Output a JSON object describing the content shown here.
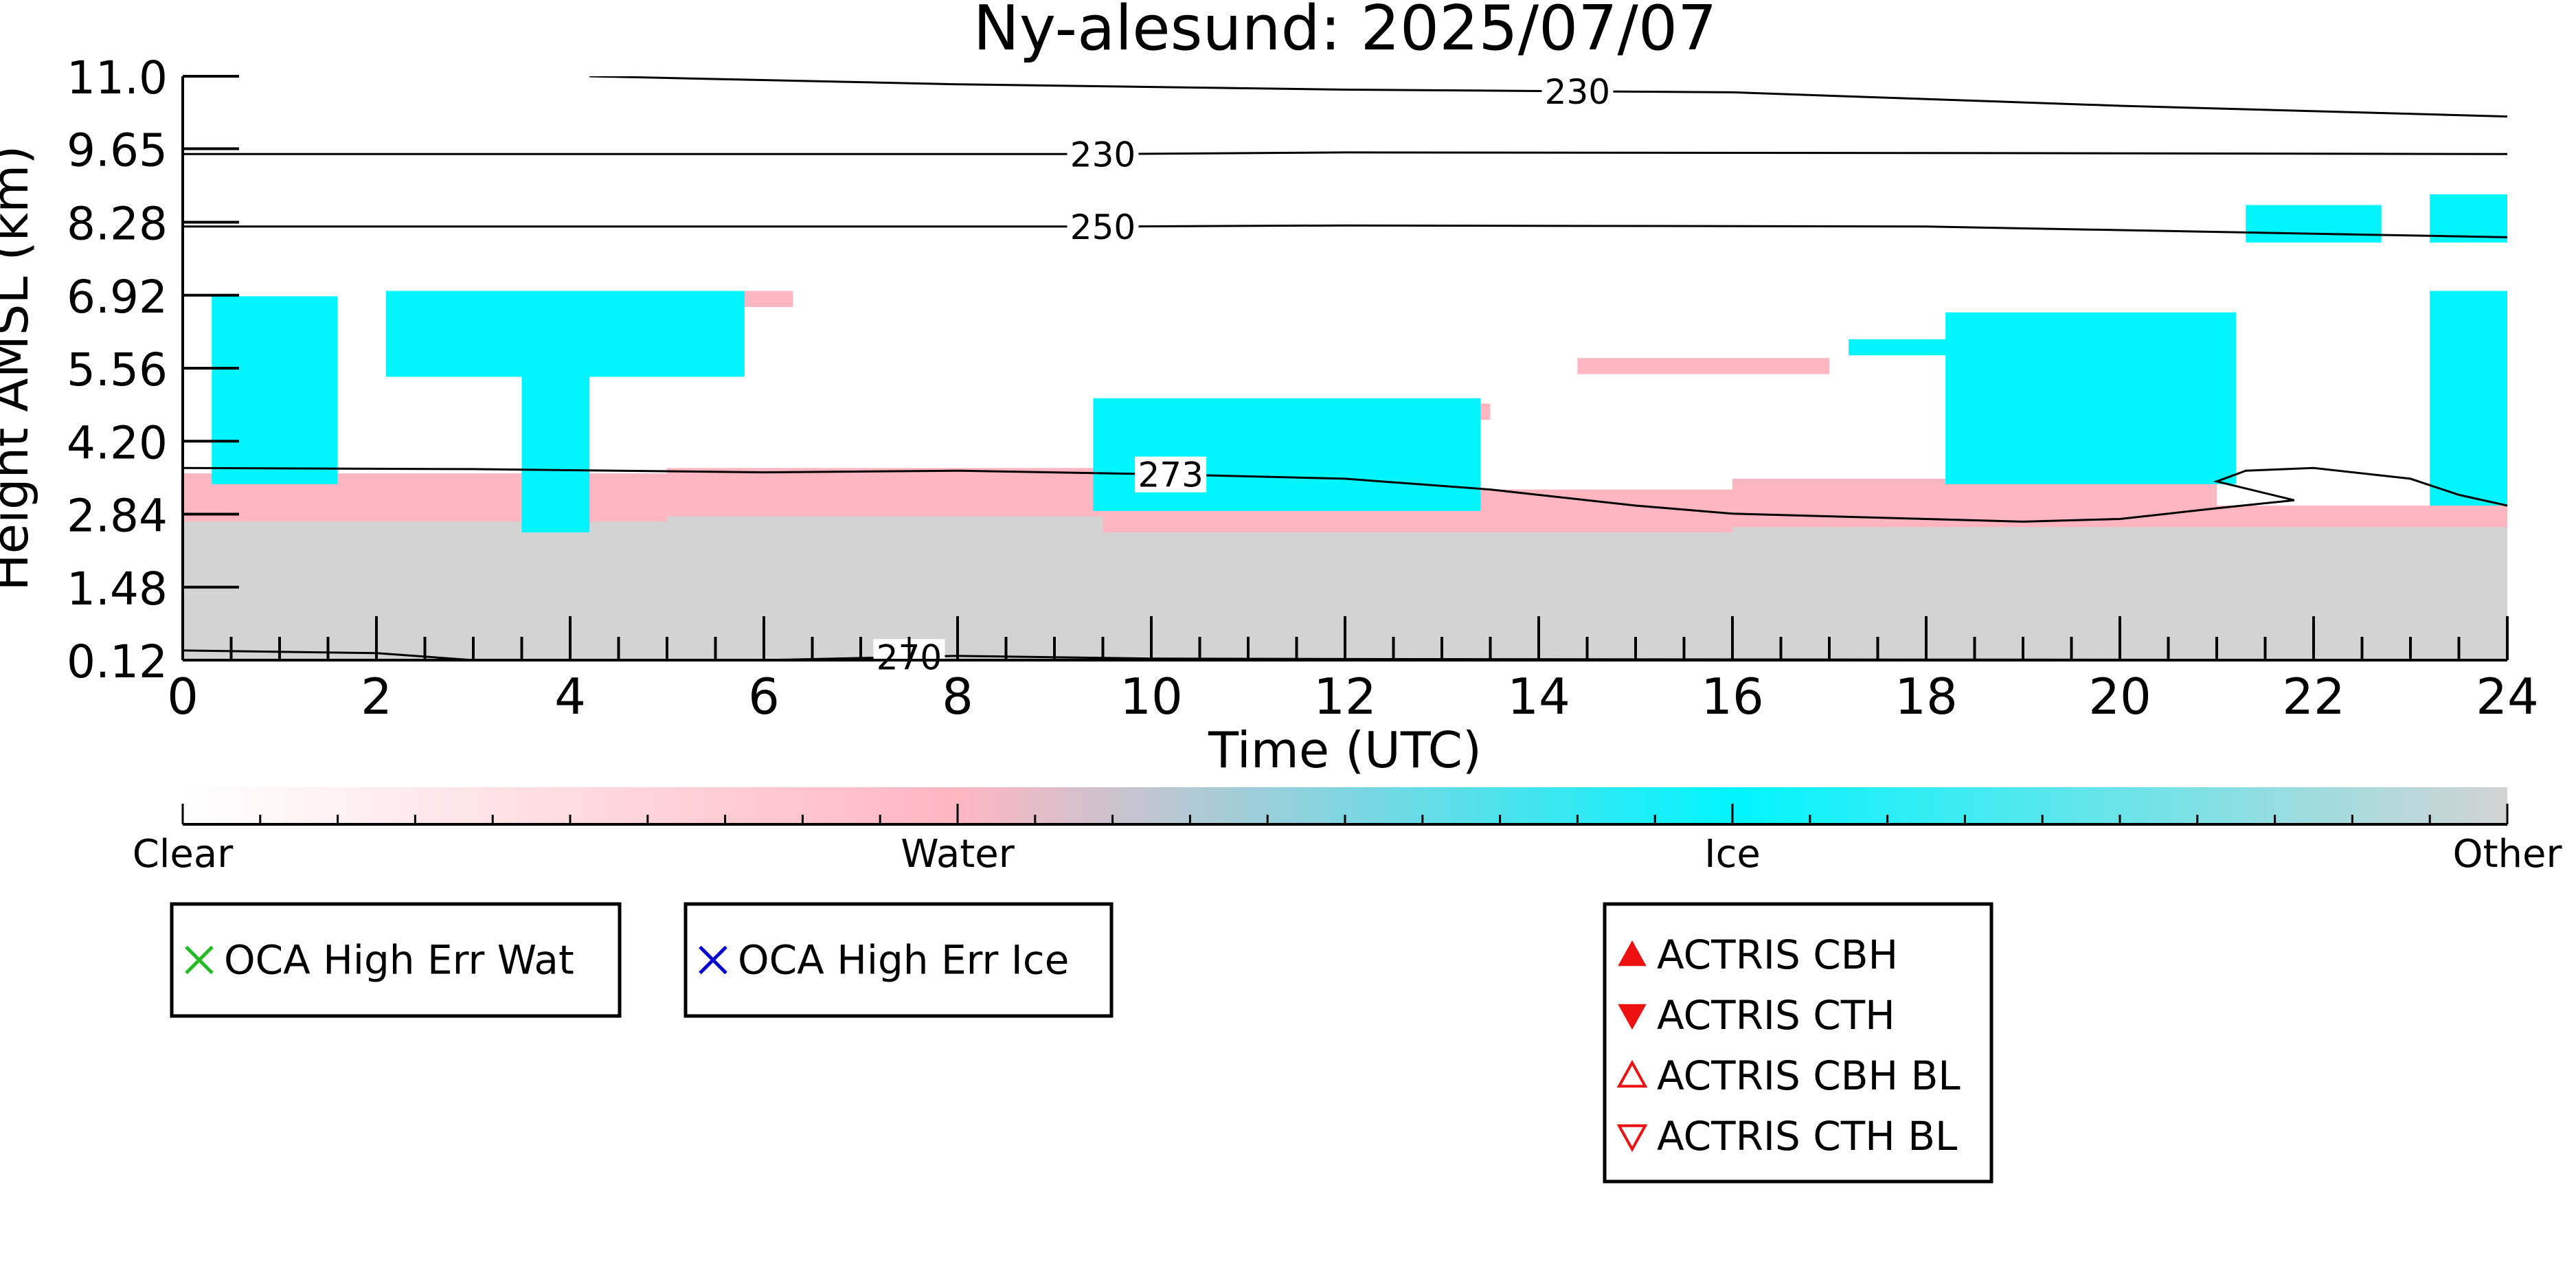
{
  "chart_data": {
    "type": "heatmap",
    "title": "Ny-alesund: 2025/07/07",
    "xlabel": "Time (UTC)",
    "ylabel": "Height AMSL (km)",
    "xlim": [
      0,
      24
    ],
    "ylim": [
      0.12,
      11.0
    ],
    "x_ticks": [
      0,
      2,
      4,
      6,
      8,
      10,
      12,
      14,
      16,
      18,
      20,
      22,
      24
    ],
    "x_tick_labels": [
      "0",
      "2",
      "4",
      "6",
      "8",
      "10",
      "12",
      "14",
      "16",
      "18",
      "20",
      "22",
      "24"
    ],
    "y_ticks": [
      0.12,
      1.48,
      2.84,
      4.2,
      5.56,
      6.92,
      8.28,
      9.65,
      11.0
    ],
    "y_tick_labels": [
      "0.12",
      "1.48",
      "2.84",
      "4.20",
      "5.56",
      "6.92",
      "8.28",
      "9.65",
      "11.0"
    ],
    "classes": [
      {
        "name": "Clear",
        "color": "#ffffff"
      },
      {
        "name": "Water",
        "color": "#ffb6c1"
      },
      {
        "name": "Ice",
        "color": "#00f5ff"
      },
      {
        "name": "Other",
        "color": "#d3d3d3"
      }
    ],
    "class_regions": [
      {
        "class": "Other",
        "t0": 0,
        "t1": 24,
        "h0": 0.12,
        "h1": 2.9
      },
      {
        "class": "Water",
        "t0": 0,
        "t1": 5,
        "h0": 2.7,
        "h1": 3.6
      },
      {
        "class": "Water",
        "t0": 5,
        "t1": 10,
        "h0": 2.8,
        "h1": 3.7
      },
      {
        "class": "Water",
        "t0": 9.5,
        "t1": 16,
        "h0": 2.5,
        "h1": 3.3
      },
      {
        "class": "Water",
        "t0": 16,
        "t1": 21,
        "h0": 2.6,
        "h1": 3.5
      },
      {
        "class": "Water",
        "t0": 21,
        "t1": 24,
        "h0": 2.6,
        "h1": 3.0
      },
      {
        "class": "Water",
        "t0": 3.4,
        "t1": 6.3,
        "h0": 6.7,
        "h1": 7.0
      },
      {
        "class": "Water",
        "t0": 9.5,
        "t1": 13.5,
        "h0": 4.6,
        "h1": 4.9
      },
      {
        "class": "Water",
        "t0": 14.4,
        "t1": 17,
        "h0": 5.45,
        "h1": 5.75
      },
      {
        "class": "Ice",
        "t0": 0.3,
        "t1": 1.6,
        "h0": 3.4,
        "h1": 6.9
      },
      {
        "class": "Ice",
        "t0": 2.1,
        "t1": 5.8,
        "h0": 5.4,
        "h1": 7.0
      },
      {
        "class": "Ice",
        "t0": 3.5,
        "t1": 4.2,
        "h0": 2.5,
        "h1": 5.5
      },
      {
        "class": "Ice",
        "t0": 9.4,
        "t1": 13.4,
        "h0": 2.9,
        "h1": 5.0
      },
      {
        "class": "Ice",
        "t0": 17.2,
        "t1": 19.5,
        "h0": 5.8,
        "h1": 6.1
      },
      {
        "class": "Ice",
        "t0": 18.2,
        "t1": 21.2,
        "h0": 3.4,
        "h1": 6.6
      },
      {
        "class": "Ice",
        "t0": 21.3,
        "t1": 22.7,
        "h0": 7.9,
        "h1": 8.6
      },
      {
        "class": "Ice",
        "t0": 23.2,
        "t1": 24,
        "h0": 7.9,
        "h1": 8.8
      },
      {
        "class": "Ice",
        "t0": 23.2,
        "t1": 24,
        "h0": 3.0,
        "h1": 7.0
      }
    ],
    "contours": [
      {
        "label": "230",
        "label_x": 14.4,
        "points": [
          [
            4.2,
            11.0
          ],
          [
            8,
            10.85
          ],
          [
            12,
            10.75
          ],
          [
            14.4,
            10.72
          ],
          [
            16,
            10.7
          ],
          [
            20,
            10.45
          ],
          [
            24,
            10.25
          ]
        ]
      },
      {
        "label": "230",
        "label_x": 9.5,
        "points": [
          [
            0,
            9.55
          ],
          [
            6,
            9.55
          ],
          [
            9.5,
            9.55
          ],
          [
            12,
            9.58
          ],
          [
            18,
            9.57
          ],
          [
            24,
            9.55
          ]
        ]
      },
      {
        "label": "250",
        "label_x": 9.5,
        "points": [
          [
            0,
            8.2
          ],
          [
            6,
            8.2
          ],
          [
            9.5,
            8.2
          ],
          [
            12,
            8.22
          ],
          [
            18,
            8.2
          ],
          [
            24,
            8.0
          ]
        ]
      },
      {
        "label": "273",
        "label_x": 10.2,
        "points": [
          [
            0,
            3.7
          ],
          [
            3,
            3.68
          ],
          [
            6,
            3.62
          ],
          [
            8,
            3.65
          ],
          [
            10.2,
            3.58
          ],
          [
            12,
            3.5
          ],
          [
            13.5,
            3.3
          ],
          [
            15,
            3.0
          ],
          [
            16,
            2.85
          ],
          [
            17,
            2.8
          ],
          [
            18,
            2.75
          ],
          [
            19,
            2.7
          ],
          [
            20,
            2.75
          ],
          [
            20.5,
            2.85
          ],
          [
            21,
            2.95
          ],
          [
            21.8,
            3.1
          ],
          [
            21,
            3.45
          ],
          [
            21.3,
            3.65
          ],
          [
            22,
            3.7
          ],
          [
            23,
            3.5
          ],
          [
            23.5,
            3.2
          ],
          [
            24,
            3.0
          ]
        ]
      },
      {
        "label": "270",
        "label_x": 7.5,
        "points": [
          [
            0,
            0.3
          ],
          [
            2,
            0.25
          ],
          [
            3,
            0.12
          ],
          [
            6,
            0.12
          ],
          [
            8,
            0.2
          ],
          [
            10,
            0.15
          ],
          [
            12,
            0.14
          ],
          [
            24,
            0.12
          ]
        ]
      }
    ],
    "legends": [
      {
        "items": [
          {
            "label": "OCA High Err Wat",
            "marker": "x",
            "color": "#22bb22"
          }
        ]
      },
      {
        "items": [
          {
            "label": "OCA High Err Ice",
            "marker": "x",
            "color": "#0000cc"
          }
        ]
      },
      {
        "items": [
          {
            "label": "ACTRIS CBH",
            "marker": "triangle-up-filled",
            "color": "#ee1111"
          },
          {
            "label": "ACTRIS CTH",
            "marker": "triangle-down-filled",
            "color": "#ee1111"
          },
          {
            "label": "ACTRIS CBH BL",
            "marker": "triangle-up-open",
            "color": "#ee1111"
          },
          {
            "label": "ACTRIS CTH BL",
            "marker": "triangle-down-open",
            "color": "#ee1111"
          }
        ]
      }
    ]
  }
}
